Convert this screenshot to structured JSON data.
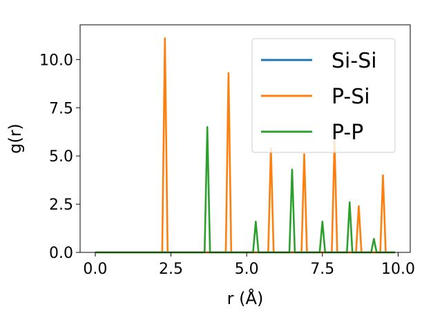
{
  "chart_data": {
    "type": "line",
    "xlabel": "r (Å)",
    "ylabel": "g(r)",
    "xlim": [
      -0.5,
      10.4
    ],
    "ylim": [
      0,
      11.8
    ],
    "x_ticks": [
      0.0,
      2.5,
      5.0,
      7.5,
      10.0
    ],
    "x_tick_labels": [
      "0.0",
      "2.5",
      "5.0",
      "7.5",
      "10.0"
    ],
    "y_ticks": [
      0.0,
      2.5,
      5.0,
      7.5,
      10.0
    ],
    "y_tick_labels": [
      "0.0",
      "2.5",
      "5.0",
      "7.5",
      "10.0"
    ],
    "grid": false,
    "legend_position": "top-right",
    "x_range": [
      0.0,
      9.9
    ],
    "series": [
      {
        "name": "Si-Si",
        "color": "#1f77b4",
        "peaks": []
      },
      {
        "name": "P-Si",
        "color": "#ff7f0e",
        "peaks": [
          {
            "x": 2.3,
            "y": 11.1
          },
          {
            "x": 4.4,
            "y": 9.3
          },
          {
            "x": 5.8,
            "y": 5.4
          },
          {
            "x": 6.9,
            "y": 5.1
          },
          {
            "x": 7.9,
            "y": 5.8
          },
          {
            "x": 8.7,
            "y": 2.4
          },
          {
            "x": 9.5,
            "y": 4.0
          }
        ]
      },
      {
        "name": "P-P",
        "color": "#2ca02c",
        "peaks": [
          {
            "x": 3.7,
            "y": 6.5
          },
          {
            "x": 5.3,
            "y": 1.6
          },
          {
            "x": 6.5,
            "y": 4.3
          },
          {
            "x": 7.5,
            "y": 1.6
          },
          {
            "x": 8.4,
            "y": 2.6
          },
          {
            "x": 9.2,
            "y": 0.7
          }
        ]
      }
    ]
  }
}
